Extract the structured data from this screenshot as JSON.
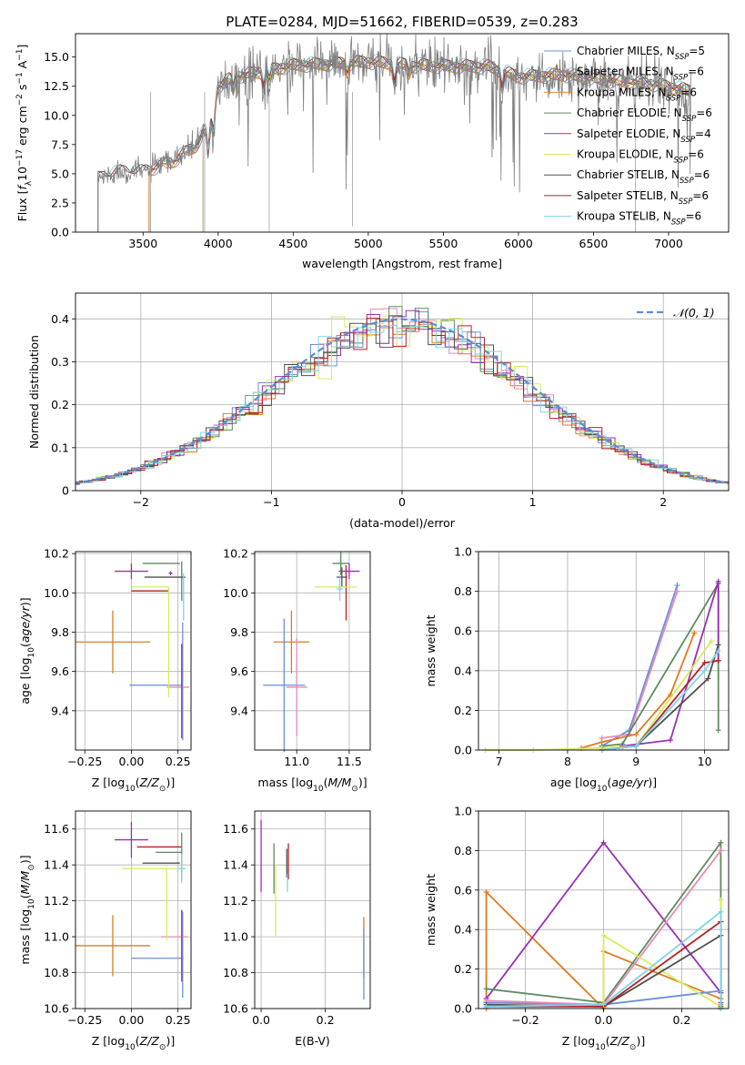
{
  "figure": {
    "colors": {
      "chabrier_miles": "#6a8fdc",
      "salpeter_miles": "#e07a1f",
      "kroupa_miles": "#e5862a",
      "chabrier_elodie": "#5f8b5f",
      "salpeter_elodie": "#9a2fb5",
      "kroupa_elodie": "#d7ec5c",
      "chabrier_stelib": "#505050",
      "salpeter_stelib": "#b22222",
      "kroupa_stelib": "#7fd3e6",
      "spectrum_data": "#808080",
      "gaussian": "#5b8dd6",
      "pink": "#e889b8"
    }
  },
  "chart_data": [
    {
      "id": "spectrum",
      "type": "line",
      "title": "PLATE=0284, MJD=51662, FIBERID=0539, z=0.283",
      "xlabel": "wavelength [Angstrom, rest frame]",
      "ylabel": "Flux [f_λ 10^-17 erg cm^-2 s^-1 A^-1]",
      "xlim": [
        3050,
        7400
      ],
      "ylim": [
        0,
        17
      ],
      "xticks": [
        "3500",
        "4000",
        "4500",
        "5000",
        "5500",
        "6000",
        "6500",
        "7000"
      ],
      "yticks": [
        "0.0",
        "2.5",
        "5.0",
        "7.5",
        "10.0",
        "12.5",
        "15.0"
      ],
      "grid": false,
      "legend_position": "right",
      "legend": [
        {
          "key": "chabrier_miles",
          "label": "Chabrier MILES, N",
          "sub": "SSP",
          "suffix": "=5"
        },
        {
          "key": "salpeter_miles",
          "label": "Salpeter MILES, N",
          "sub": "SSP",
          "suffix": "=6"
        },
        {
          "key": "kroupa_miles",
          "label": "Kroupa MILES, N",
          "sub": "SSP",
          "suffix": "=6"
        },
        {
          "key": "chabrier_elodie",
          "label": "Chabrier ELODIE, N",
          "sub": "SSP",
          "suffix": "=6"
        },
        {
          "key": "salpeter_elodie",
          "label": "Salpeter ELODIE, N",
          "sub": "SSP",
          "suffix": "=4"
        },
        {
          "key": "kroupa_elodie",
          "label": "Kroupa ELODIE, N",
          "sub": "SSP",
          "suffix": "=6"
        },
        {
          "key": "chabrier_stelib",
          "label": "Chabrier STELIB, N",
          "sub": "SSP",
          "suffix": "=6"
        },
        {
          "key": "salpeter_stelib",
          "label": "Salpeter STELIB, N",
          "sub": "SSP",
          "suffix": "=6"
        },
        {
          "key": "kroupa_stelib",
          "label": "Kroupa STELIB, N",
          "sub": "SSP",
          "suffix": "=6"
        }
      ],
      "continuum": {
        "x": [
          3200,
          3350,
          3500,
          3700,
          3850,
          3950,
          4000,
          4100,
          4300,
          4500,
          4700,
          5000,
          5300,
          5600,
          5800,
          6000,
          6300,
          6600,
          6900,
          7150
        ],
        "y": [
          4.6,
          5.2,
          5.2,
          6.1,
          7.4,
          9.6,
          12.5,
          13.3,
          13.8,
          14.3,
          14.4,
          14.6,
          14.3,
          14.2,
          14.2,
          13.3,
          13.5,
          13.0,
          12.7,
          12.1
        ]
      },
      "model_starts": {
        "chabrier_miles": 3540,
        "salpeter_miles": 3540,
        "kroupa_miles": 3540,
        "chabrier_elodie": 3900,
        "salpeter_elodie": 3900,
        "kroupa_elodie": 3900,
        "chabrier_stelib": 3200,
        "salpeter_stelib": 3200,
        "kroupa_stelib": 3200
      },
      "data_range": [
        3200,
        7150
      ]
    },
    {
      "id": "residuals",
      "type": "histogram",
      "xlabel": "(data-model)/error",
      "ylabel": "Normed distribution",
      "xlim": [
        -2.5,
        2.5
      ],
      "ylim": [
        0,
        0.46
      ],
      "xticks": [
        -2,
        -1,
        0,
        1,
        2
      ],
      "yticks": [
        0.0,
        0.1,
        0.2,
        0.3,
        0.4
      ],
      "grid": true,
      "legend_position": "top-right",
      "legend": [
        {
          "key": "gaussian",
          "label": "𝒩(0, 1)"
        }
      ],
      "bin_width": 0.1
    },
    {
      "id": "z_age",
      "type": "errorbar",
      "xlabel": "Z [log10(Z/Z☉)]",
      "ylabel": "age [log10(age/yr)]",
      "xlim": [
        -0.3,
        0.32
      ],
      "ylim": [
        9.2,
        10.21
      ],
      "xticks": [
        -0.25,
        0.0,
        0.25
      ],
      "yticks": [
        9.4,
        9.6,
        9.8,
        10.0,
        10.2
      ],
      "grid": true,
      "points": [
        {
          "key": "salpeter_miles",
          "x": -0.1,
          "xerr": 0.2,
          "y": 9.75,
          "yerr": 0.16
        },
        {
          "key": "chabrier_miles",
          "x": 0.13,
          "xerr": 0.14,
          "y": 9.53,
          "yerr": 0.0
        },
        {
          "key": "chabrier_miles",
          "x": 0.275,
          "xerr": 0.0,
          "y": 9.55,
          "yerr": 0.3
        },
        {
          "key": "pink",
          "x": 0.25,
          "xerr": 0.06,
          "y": 9.52,
          "yerr": 0.0
        },
        {
          "key": "salpeter_elodie",
          "x": 0.27,
          "xerr": 0.0,
          "y": 9.5,
          "yerr": 0.24
        },
        {
          "key": "salpeter_elodie",
          "x": 0.0,
          "xerr": 0.09,
          "y": 10.11,
          "yerr": 0.04
        },
        {
          "key": "salpeter_elodie",
          "x": 0.21,
          "xerr": 0.0,
          "y": 10.1,
          "yerr": 0.0
        },
        {
          "key": "salpeter_stelib",
          "x": 0.1,
          "xerr": 0.1,
          "y": 10.01,
          "yerr": 0.0
        },
        {
          "key": "chabrier_elodie",
          "x": 0.16,
          "xerr": 0.1,
          "y": 10.15,
          "yerr": 0.0
        },
        {
          "key": "chabrier_elodie",
          "x": 0.27,
          "xerr": 0.0,
          "y": 10.06,
          "yerr": 0.1
        },
        {
          "key": "chabrier_stelib",
          "x": 0.18,
          "xerr": 0.11,
          "y": 10.08,
          "yerr": 0.0
        },
        {
          "key": "kroupa_elodie",
          "x": 0.1,
          "xerr": 0.1,
          "y": 10.03,
          "yerr": 0.0
        },
        {
          "key": "kroupa_elodie",
          "x": 0.2,
          "xerr": 0.0,
          "y": 9.75,
          "yerr": 0.28
        },
        {
          "key": "kroupa_stelib",
          "x": 0.28,
          "xerr": 0.0,
          "y": 9.98,
          "yerr": 0.12
        }
      ]
    },
    {
      "id": "mass_age",
      "type": "errorbar",
      "xlabel": "mass [log10(M/M☉)]",
      "ylabel": "",
      "xlim": [
        10.6,
        11.7
      ],
      "ylim": [
        9.2,
        10.21
      ],
      "xticks": [
        11.0,
        11.5
      ],
      "yticks": [
        9.4,
        9.6,
        9.8,
        10.0,
        10.2
      ],
      "grid": true,
      "points": [
        {
          "key": "salpeter_miles",
          "x": 10.95,
          "xerr": 0.17,
          "y": 9.75,
          "yerr": 0.16
        },
        {
          "key": "chabrier_miles",
          "x": 10.88,
          "xerr": 0.2,
          "y": 9.53,
          "yerr": 0.34
        },
        {
          "key": "pink",
          "x": 11.0,
          "xerr": 0.1,
          "y": 9.52,
          "yerr": 0.25
        },
        {
          "key": "salpeter_elodie",
          "x": 11.5,
          "xerr": 0.1,
          "y": 10.11,
          "yerr": 0.04
        },
        {
          "key": "salpeter_stelib",
          "x": 11.47,
          "xerr": 0.0,
          "y": 10.0,
          "yerr": 0.14
        },
        {
          "key": "chabrier_elodie",
          "x": 11.42,
          "xerr": 0.08,
          "y": 10.15,
          "yerr": 0.06
        },
        {
          "key": "chabrier_stelib",
          "x": 11.43,
          "xerr": 0.05,
          "y": 10.08,
          "yerr": 0.05
        },
        {
          "key": "kroupa_elodie",
          "x": 11.37,
          "xerr": 0.2,
          "y": 10.03,
          "yerr": 0.0
        },
        {
          "key": "kroupa_stelib",
          "x": 11.41,
          "xerr": 0.03,
          "y": 10.02,
          "yerr": 0.06
        }
      ]
    },
    {
      "id": "age_weight",
      "type": "line",
      "xlabel": "age [log10(age/yr)]",
      "ylabel": "mass weight",
      "xlim": [
        6.7,
        10.35
      ],
      "ylim": [
        0,
        1.0
      ],
      "xticks": [
        7,
        8,
        9,
        10
      ],
      "yticks": [
        0.0,
        0.2,
        0.4,
        0.6,
        0.8,
        1.0
      ],
      "grid": true,
      "series": [
        {
          "key": "chabrier_miles",
          "x": [
            8.5,
            8.9,
            9.6
          ],
          "y": [
            0.02,
            0.1,
            0.83
          ]
        },
        {
          "key": "pink",
          "x": [
            8.5,
            8.9,
            9.6
          ],
          "y": [
            0.06,
            0.08,
            0.8
          ]
        },
        {
          "key": "salpeter_miles",
          "x": [
            8.2,
            8.5,
            9.0,
            9.5,
            9.85
          ],
          "y": [
            0.01,
            0.04,
            0.08,
            0.28,
            0.59
          ]
        },
        {
          "key": "chabrier_elodie",
          "x": [
            8.5,
            8.8,
            10.2,
            10.2
          ],
          "y": [
            0.02,
            0.03,
            0.84,
            0.1
          ]
        },
        {
          "key": "salpeter_elodie",
          "x": [
            8.8,
            9.5,
            10.2,
            10.2
          ],
          "y": [
            0.02,
            0.05,
            0.85,
            0.45
          ]
        },
        {
          "key": "kroupa_elodie",
          "x": [
            6.8,
            7.5,
            8.5,
            9.0,
            10.1
          ],
          "y": [
            0.0,
            0.0,
            0.01,
            0.02,
            0.55
          ]
        },
        {
          "key": "chabrier_stelib",
          "x": [
            8.5,
            9.0,
            10.05,
            10.2
          ],
          "y": [
            0.0,
            0.02,
            0.36,
            0.53
          ]
        },
        {
          "key": "salpeter_stelib",
          "x": [
            8.5,
            9.0,
            10.0,
            10.2
          ],
          "y": [
            0.0,
            0.02,
            0.44,
            0.45
          ]
        },
        {
          "key": "kroupa_stelib",
          "x": [
            8.5,
            9.0,
            10.0,
            10.2
          ],
          "y": [
            0.0,
            0.02,
            0.4,
            0.5
          ]
        }
      ]
    },
    {
      "id": "z_mass",
      "type": "errorbar",
      "xlabel": "Z [log10(Z/Z☉)]",
      "ylabel": "mass [log10(M/M☉)]",
      "xlim": [
        -0.3,
        0.32
      ],
      "ylim": [
        10.6,
        11.7
      ],
      "xticks": [
        -0.25,
        0.0,
        0.25
      ],
      "yticks": [
        10.6,
        10.8,
        11.0,
        11.2,
        11.4,
        11.6
      ],
      "grid": true,
      "points": [
        {
          "key": "salpeter_miles",
          "x": -0.1,
          "xerr": 0.2,
          "y": 10.95,
          "yerr": 0.17
        },
        {
          "key": "chabrier_miles",
          "x": 0.14,
          "xerr": 0.14,
          "y": 10.88,
          "yerr": 0.0
        },
        {
          "key": "chabrier_miles",
          "x": 0.275,
          "xerr": 0.0,
          "y": 10.9,
          "yerr": 0.24
        },
        {
          "key": "pink",
          "x": 0.23,
          "xerr": 0.07,
          "y": 11.0,
          "yerr": 0.0
        },
        {
          "key": "salpeter_elodie",
          "x": 0.27,
          "xerr": 0.0,
          "y": 10.95,
          "yerr": 0.2
        },
        {
          "key": "salpeter_elodie",
          "x": 0.0,
          "xerr": 0.09,
          "y": 11.54,
          "yerr": 0.1
        },
        {
          "key": "salpeter_stelib",
          "x": 0.15,
          "xerr": 0.12,
          "y": 11.5,
          "yerr": 0.0
        },
        {
          "key": "chabrier_elodie",
          "x": 0.2,
          "xerr": 0.07,
          "y": 11.47,
          "yerr": 0.0
        },
        {
          "key": "chabrier_elodie",
          "x": 0.27,
          "xerr": 0.0,
          "y": 11.45,
          "yerr": 0.13
        },
        {
          "key": "chabrier_stelib",
          "x": 0.16,
          "xerr": 0.1,
          "y": 11.41,
          "yerr": 0.0
        },
        {
          "key": "kroupa_elodie",
          "x": 0.1,
          "xerr": 0.15,
          "y": 11.38,
          "yerr": 0.0
        },
        {
          "key": "kroupa_elodie",
          "x": 0.19,
          "xerr": 0.0,
          "y": 11.18,
          "yerr": 0.2
        },
        {
          "key": "kroupa_stelib",
          "x": 0.27,
          "xerr": 0.02,
          "y": 11.38,
          "yerr": 0.08
        }
      ]
    },
    {
      "id": "ebv_mass",
      "type": "errorbar",
      "xlabel": "E(B-V)",
      "ylabel": "",
      "xlim": [
        -0.02,
        0.34
      ],
      "ylim": [
        10.6,
        11.7
      ],
      "xticks": [
        0.0,
        0.2
      ],
      "yticks": [
        10.6,
        10.8,
        11.0,
        11.2,
        11.4,
        11.6
      ],
      "grid": true,
      "points": [
        {
          "key": "salpeter_elodie",
          "x": 0.0,
          "xerr": 0.0,
          "y": 11.45,
          "yerr": 0.2
        },
        {
          "key": "chabrier_elodie",
          "x": 0.04,
          "xerr": 0.0,
          "y": 11.38,
          "yerr": 0.14
        },
        {
          "key": "kroupa_elodie",
          "x": 0.045,
          "xerr": 0.0,
          "y": 11.2,
          "yerr": 0.2
        },
        {
          "key": "salpeter_stelib",
          "x": 0.085,
          "xerr": 0.0,
          "y": 11.42,
          "yerr": 0.1
        },
        {
          "key": "chabrier_stelib",
          "x": 0.08,
          "xerr": 0.0,
          "y": 11.41,
          "yerr": 0.08
        },
        {
          "key": "kroupa_stelib",
          "x": 0.082,
          "xerr": 0.0,
          "y": 11.3,
          "yerr": 0.05
        },
        {
          "key": "salpeter_miles",
          "x": 0.32,
          "xerr": 0.0,
          "y": 10.94,
          "yerr": 0.17
        },
        {
          "key": "chabrier_miles",
          "x": 0.32,
          "xerr": 0.0,
          "y": 10.85,
          "yerr": 0.2
        }
      ]
    },
    {
      "id": "z_weight",
      "type": "line",
      "xlabel": "Z [log10(Z/Z☉)]",
      "ylabel": "mass weight",
      "xlim": [
        -0.32,
        0.32
      ],
      "ylim": [
        0,
        1.0
      ],
      "xticks": [
        -0.2,
        0.0,
        0.2
      ],
      "yticks": [
        0.0,
        0.2,
        0.4,
        0.6,
        0.8,
        1.0
      ],
      "grid": true,
      "series": [
        {
          "key": "salpeter_miles",
          "x": [
            -0.3,
            -0.3,
            0.0,
            0.0,
            0.3,
            0.3
          ],
          "y": [
            0.0,
            0.59,
            0.0,
            0.29,
            0.05,
            0.02
          ]
        },
        {
          "key": "salpeter_elodie",
          "x": [
            -0.3,
            0.0,
            0.3,
            0.3
          ],
          "y": [
            0.05,
            0.84,
            0.08,
            0.03
          ]
        },
        {
          "key": "chabrier_miles",
          "x": [
            -0.3,
            0.0,
            0.3
          ],
          "y": [
            0.03,
            0.02,
            0.09
          ]
        },
        {
          "key": "chabrier_elodie",
          "x": [
            -0.3,
            0.0,
            0.3,
            0.3
          ],
          "y": [
            0.1,
            0.03,
            0.84,
            0.0
          ]
        },
        {
          "key": "pink",
          "x": [
            -0.3,
            0.0,
            0.3
          ],
          "y": [
            0.04,
            0.02,
            0.8
          ]
        },
        {
          "key": "kroupa_elodie",
          "x": [
            -0.3,
            0.0,
            0.0,
            0.3,
            0.3
          ],
          "y": [
            0.02,
            0.01,
            0.37,
            0.01,
            0.55
          ]
        },
        {
          "key": "chabrier_stelib",
          "x": [
            -0.3,
            0.0,
            0.3,
            0.3
          ],
          "y": [
            0.02,
            0.01,
            0.37,
            0.01
          ]
        },
        {
          "key": "salpeter_stelib",
          "x": [
            -0.3,
            0.0,
            0.3,
            0.3
          ],
          "y": [
            0.01,
            0.01,
            0.44,
            0.0
          ]
        },
        {
          "key": "kroupa_stelib",
          "x": [
            -0.3,
            0.0,
            0.3,
            0.3
          ],
          "y": [
            0.01,
            0.02,
            0.49,
            0.0
          ]
        }
      ]
    }
  ]
}
